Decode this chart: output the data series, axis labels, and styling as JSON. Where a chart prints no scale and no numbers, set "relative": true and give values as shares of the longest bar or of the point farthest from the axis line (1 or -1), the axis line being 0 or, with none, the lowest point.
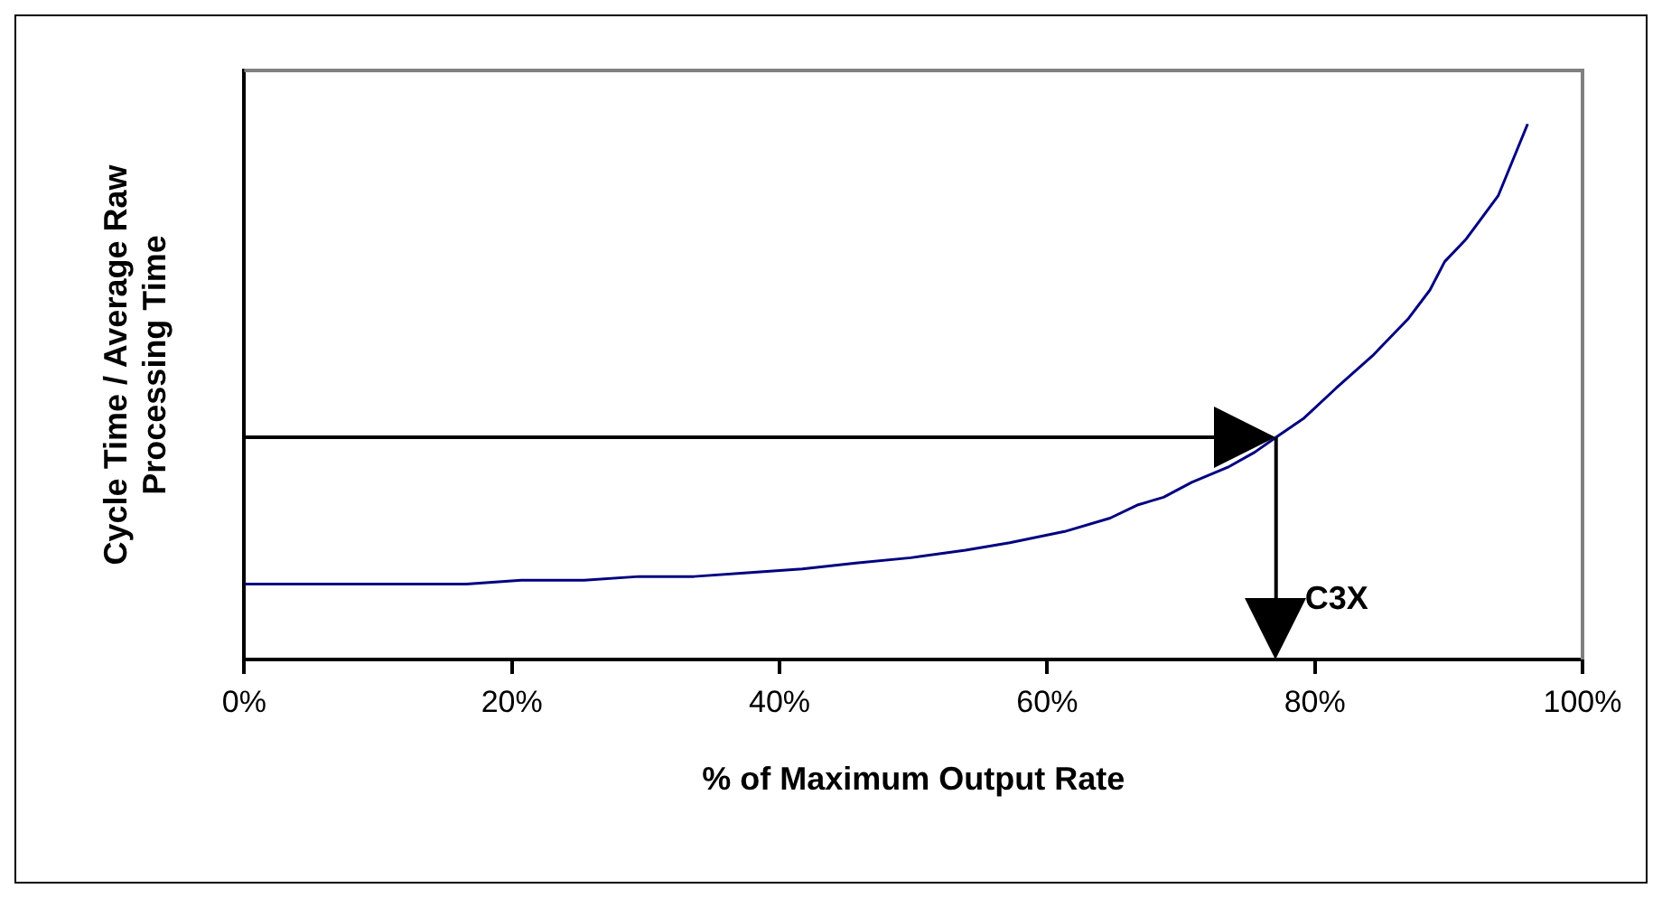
{
  "chart_data": {
    "type": "line",
    "relative": true,
    "xlabel": "% of Maximum Output Rate",
    "ylabel": "Cycle Time / Average Raw\nProcessing Time",
    "xlim": [
      0,
      100
    ],
    "xticks": [
      {
        "value": 0,
        "label": "0%"
      },
      {
        "value": 20,
        "label": "20%"
      },
      {
        "value": 40,
        "label": "40%"
      },
      {
        "value": 60,
        "label": "60%"
      },
      {
        "value": 80,
        "label": "80%"
      },
      {
        "value": 100,
        "label": "100%"
      }
    ],
    "x": [
      0,
      16.6,
      20.7,
      25.4,
      29.5,
      33.6,
      37.6,
      41.7,
      45.7,
      49.8,
      53.9,
      57.2,
      61.3,
      64.7,
      66.8,
      68.7,
      70.8,
      73.5,
      75.5,
      77.1,
      79.2,
      81.6,
      84.3,
      87,
      88.6,
      89.7,
      91.3,
      93.7,
      95.9
    ],
    "series": [
      {
        "color": "#000080",
        "values": [
          0.141,
          0.141,
          0.148,
          0.148,
          0.155,
          0.155,
          0.162,
          0.169,
          0.18,
          0.19,
          0.204,
          0.218,
          0.239,
          0.264,
          0.289,
          0.303,
          0.331,
          0.359,
          0.387,
          0.415,
          0.451,
          0.507,
          0.567,
          0.637,
          0.69,
          0.743,
          0.785,
          0.866,
          1
        ]
      }
    ],
    "ref_lines": [
      {
        "axis": "y",
        "value": 0.415,
        "color": "#000000"
      },
      {
        "axis": "x",
        "value": 77.1,
        "label": "C3X",
        "color": "#000000"
      }
    ],
    "grid": false,
    "legend": false,
    "marker": "none",
    "line_style": "solid"
  }
}
